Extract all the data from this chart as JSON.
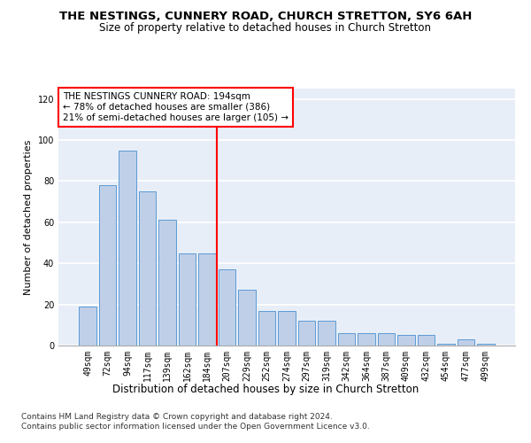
{
  "title": "THE NESTINGS, CUNNERY ROAD, CHURCH STRETTON, SY6 6AH",
  "subtitle": "Size of property relative to detached houses in Church Stretton",
  "xlabel": "Distribution of detached houses by size in Church Stretton",
  "ylabel": "Number of detached properties",
  "categories": [
    "49sqm",
    "72sqm",
    "94sqm",
    "117sqm",
    "139sqm",
    "162sqm",
    "184sqm",
    "207sqm",
    "229sqm",
    "252sqm",
    "274sqm",
    "297sqm",
    "319sqm",
    "342sqm",
    "364sqm",
    "387sqm",
    "409sqm",
    "432sqm",
    "454sqm",
    "477sqm",
    "499sqm"
  ],
  "bar_values": [
    19,
    78,
    95,
    75,
    61,
    45,
    45,
    37,
    27,
    17,
    17,
    12,
    12,
    6,
    6,
    6,
    5,
    5,
    1,
    3,
    1
  ],
  "bar_color": "#BFCFE8",
  "bar_edge_color": "#5B9BD5",
  "annotation_text_line1": "THE NESTINGS CUNNERY ROAD: 194sqm",
  "annotation_text_line2": "← 78% of detached houses are smaller (386)",
  "annotation_text_line3": "21% of semi-detached houses are larger (105) →",
  "vline_color": "red",
  "vline_index": 6,
  "ylim": [
    0,
    125
  ],
  "yticks": [
    0,
    20,
    40,
    60,
    80,
    100,
    120
  ],
  "footer_line1": "Contains HM Land Registry data © Crown copyright and database right 2024.",
  "footer_line2": "Contains public sector information licensed under the Open Government Licence v3.0.",
  "background_color": "#E8EEF8",
  "grid_color": "white",
  "title_fontsize": 9.5,
  "subtitle_fontsize": 8.5,
  "xlabel_fontsize": 8.5,
  "ylabel_fontsize": 8,
  "tick_fontsize": 7,
  "annotation_fontsize": 7.5,
  "footer_fontsize": 6.5
}
